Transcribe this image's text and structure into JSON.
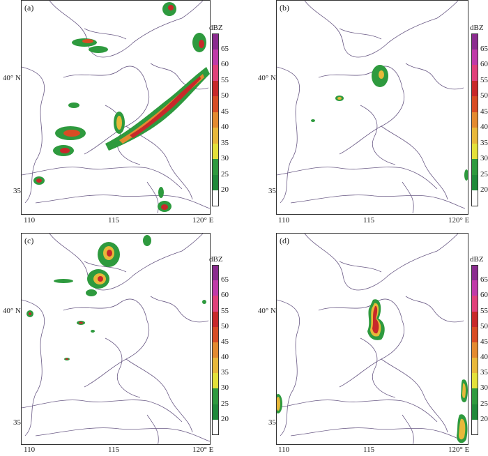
{
  "units": "dBZ",
  "colorbar": {
    "ticks": [
      "65",
      "60",
      "55",
      "50",
      "45",
      "40",
      "35",
      "30",
      "25",
      "20"
    ],
    "colors": [
      "#8b2c8f",
      "#c03aa8",
      "#e0407a",
      "#c8282a",
      "#d84c24",
      "#e38a30",
      "#e8b83a",
      "#e3e13a",
      "#2e9a3e",
      "#1f8a3a",
      "#ffffff"
    ]
  },
  "lat_labels": [
    "40° N",
    "35"
  ],
  "lon_labels": [
    "110",
    "115",
    "120° E"
  ],
  "panels": [
    {
      "label": "(a)"
    },
    {
      "label": "(b)"
    },
    {
      "label": "(c)"
    },
    {
      "label": "(d)"
    }
  ]
}
